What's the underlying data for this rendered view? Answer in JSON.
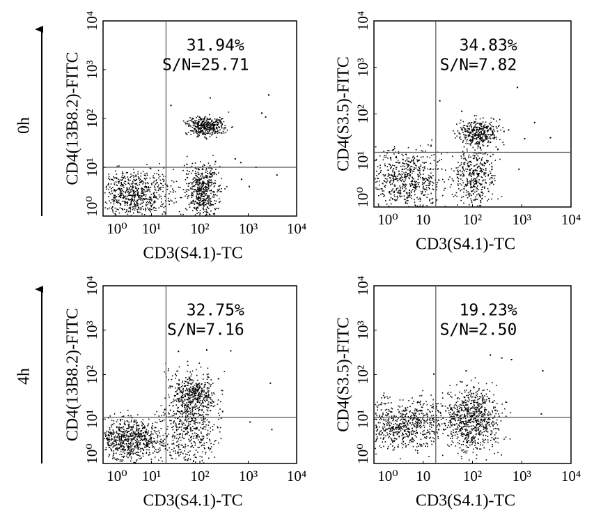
{
  "row_labels": [
    "0h",
    "4h"
  ],
  "chart_data": [
    {
      "type": "scatter",
      "xlabel": "CD3(S4.1)-TC",
      "ylabel": "CD4(13B8.2)-FITC",
      "xscale": "log",
      "yscale": "log",
      "xlim": [
        1,
        10000
      ],
      "ylim": [
        1,
        10000
      ],
      "xticks": [
        {
          "value": 1,
          "label": "10⁰"
        },
        {
          "value": 10,
          "label": "10¹"
        },
        {
          "value": 100,
          "label": "10²"
        },
        {
          "value": 1000,
          "label": "10³"
        },
        {
          "value": 10000,
          "label": "10⁴"
        }
      ],
      "yticks": [
        {
          "value": 1,
          "label": "10⁰"
        },
        {
          "value": 10,
          "label": "10¹"
        },
        {
          "value": 100,
          "label": "10²"
        },
        {
          "value": 1000,
          "label": "10³"
        },
        {
          "value": 10000,
          "label": "10⁴"
        }
      ],
      "gate": {
        "x": 20,
        "y": 10
      },
      "annotations": [
        "31.94%",
        "S/N=25.71"
      ]
    },
    {
      "type": "scatter",
      "xlabel": "CD3(S4.1)-TC",
      "ylabel": "CD4(S3.5)-FITC",
      "xscale": "log",
      "yscale": "log",
      "xlim": [
        1,
        10000
      ],
      "ylim": [
        1,
        10000
      ],
      "xticks": [
        {
          "value": 1,
          "label": "10⁰"
        },
        10,
        {
          "value": 100,
          "label": "10²"
        },
        {
          "value": 1000,
          "label": "10³"
        },
        {
          "value": 10000,
          "label": "10⁴"
        }
      ],
      "yticks": [
        {
          "value": 1,
          "label": "10⁰"
        },
        {
          "value": 10,
          "label": "10¹"
        },
        {
          "value": 100,
          "label": "10²"
        },
        {
          "value": 1000,
          "label": "10³"
        },
        {
          "value": 10000,
          "label": "10⁴"
        }
      ],
      "gate": {
        "x": 18,
        "y": 15
      },
      "annotations": [
        "34.83%",
        "S/N=7.82"
      ]
    },
    {
      "type": "scatter",
      "xlabel": "CD3(S4.1)-TC",
      "ylabel": "CD4(13B8.2)-FITC",
      "xscale": "log",
      "yscale": "log",
      "xlim": [
        1,
        10000
      ],
      "ylim": [
        1,
        10000
      ],
      "xticks": [
        {
          "value": 1,
          "label": "10⁰"
        },
        {
          "value": 10,
          "label": "10¹"
        },
        {
          "value": 100,
          "label": "10²"
        },
        {
          "value": 1000,
          "label": "10³"
        },
        {
          "value": 10000,
          "label": "10⁴"
        }
      ],
      "yticks": [
        {
          "value": 1,
          "label": "10⁰"
        },
        {
          "value": 10,
          "label": "10¹"
        },
        {
          "value": 100,
          "label": "10²"
        },
        {
          "value": 1000,
          "label": "10³"
        },
        {
          "value": 10000,
          "label": "10⁴"
        }
      ],
      "gate": {
        "x": 20,
        "y": 11
      },
      "annotations": [
        "32.75%",
        "S/N=7.16"
      ]
    },
    {
      "type": "scatter",
      "xlabel": "CD3(S4.1)-TC",
      "ylabel": "CD4(S3.5)-FITC",
      "xscale": "log",
      "yscale": "log",
      "xlim": [
        1,
        10000
      ],
      "ylim": [
        1,
        10000
      ],
      "xticks": [
        {
          "value": 1,
          "label": "10⁰"
        },
        10,
        {
          "value": 100,
          "label": "10²"
        },
        {
          "value": 1000,
          "label": "10³"
        },
        {
          "value": 10000,
          "label": "10⁴"
        }
      ],
      "yticks": [
        {
          "value": 1,
          "label": "10⁰"
        },
        {
          "value": 10,
          "label": "10¹"
        },
        {
          "value": 100,
          "label": "10²"
        },
        {
          "value": 1000,
          "label": "10³"
        },
        {
          "value": 10000,
          "label": "10⁴"
        }
      ],
      "gate": {
        "x": 18,
        "y": 11
      },
      "annotations": [
        "19.23%",
        "S/N=2.50"
      ]
    }
  ]
}
